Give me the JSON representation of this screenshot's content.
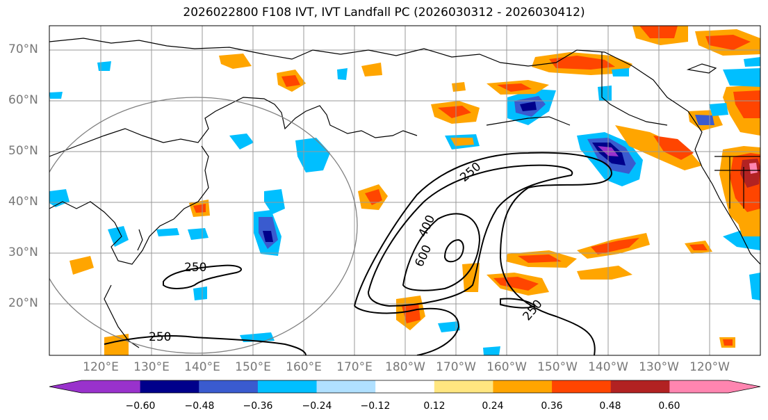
{
  "title": "2026022800 F108 IVT, IVT Landfall PC (2026030312 - 2026030412)",
  "lat_labels": [
    "70°N",
    "60°N",
    "50°N",
    "40°N",
    "30°N",
    "20°N"
  ],
  "lon_labels": [
    "120°E",
    "130°E",
    "140°E",
    "150°E",
    "160°E",
    "170°E",
    "180°W",
    "170°W",
    "160°W",
    "150°W",
    "140°W",
    "130°W",
    "120°W"
  ],
  "contour_labels": [
    "250",
    "400",
    "600",
    "250",
    "250",
    "250"
  ],
  "colorbar": {
    "ticks": [
      "−0.60",
      "−0.48",
      "−0.36",
      "−0.24",
      "−0.12",
      "0.12",
      "0.24",
      "0.36",
      "0.48",
      "0.60"
    ],
    "colors": [
      "#9932cc",
      "#00008b",
      "#3a5bcf",
      "#00bfff",
      "#b0e0ff",
      "#ffffff",
      "#ffe680",
      "#ffa500",
      "#ff4500",
      "#b22222",
      "#ff85b0"
    ]
  },
  "colors": {
    "grid": "#999999",
    "coast": "#000000",
    "circle": "#808080"
  }
}
